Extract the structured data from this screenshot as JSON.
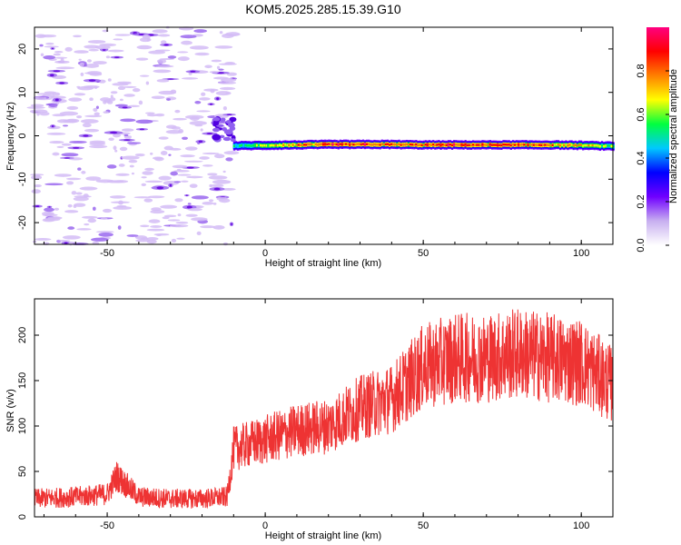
{
  "title": "KOM5.2025.285.15.39.G10",
  "chart_data": [
    {
      "type": "heatmap",
      "panel": "spectrogram",
      "xlabel": "Height of straight line (km)",
      "ylabel": "Frequency (Hz)",
      "xlim": [
        -73,
        110
      ],
      "ylim": [
        -25,
        25
      ],
      "xticks": [
        -50,
        0,
        50,
        100
      ],
      "yticks": [
        -20,
        -10,
        0,
        10,
        20
      ],
      "colorbar": {
        "label": "Normalized spectral amplitude",
        "range": [
          0,
          1
        ],
        "ticks": [
          "0.0",
          "0.2",
          "0.4",
          "0.6",
          "0.8"
        ],
        "tick_values": [
          0,
          0.2,
          0.4,
          0.6,
          0.8
        ],
        "colors": [
          "#ffffff",
          "#c8b0f0",
          "#7000ff",
          "#0000ff",
          "#00c8ff",
          "#00ff40",
          "#ffff00",
          "#ff8000",
          "#ff0000",
          "#ff0080"
        ]
      },
      "signal": {
        "description_free": true,
        "x": [
          -10,
          0,
          10,
          20,
          30,
          40,
          50,
          60,
          70,
          80,
          90,
          100,
          110
        ],
        "frequency": [
          -2.3,
          -2.2,
          -2.1,
          -2.0,
          -2.0,
          -2.0,
          -2.1,
          -2.1,
          -2.1,
          -2.1,
          -2.1,
          -2.2,
          -2.4
        ],
        "amplitude": [
          0.3,
          0.5,
          0.7,
          0.85,
          0.9,
          0.75,
          0.8,
          0.85,
          0.8,
          0.85,
          0.75,
          0.6,
          0.5
        ]
      },
      "noise_region_xlim": [
        -73,
        -10
      ]
    },
    {
      "type": "line",
      "panel": "snr",
      "xlabel": "Height of straight line (km)",
      "ylabel": "SNR (v/v)",
      "xlim": [
        -73,
        110
      ],
      "ylim": [
        0,
        240
      ],
      "xticks": [
        -50,
        0,
        50,
        100
      ],
      "yticks": [
        0,
        50,
        100,
        150,
        200
      ],
      "series": [
        {
          "color": "#ee3333",
          "x": [
            -73,
            -60,
            -50,
            -47,
            -40,
            -30,
            -20,
            -12,
            -10,
            -5,
            0,
            10,
            20,
            30,
            40,
            50,
            60,
            70,
            80,
            90,
            100,
            110
          ],
          "values": [
            20,
            22,
            25,
            45,
            22,
            20,
            20,
            22,
            75,
            80,
            85,
            95,
            100,
            120,
            130,
            165,
            175,
            175,
            180,
            175,
            170,
            145
          ]
        }
      ]
    }
  ]
}
